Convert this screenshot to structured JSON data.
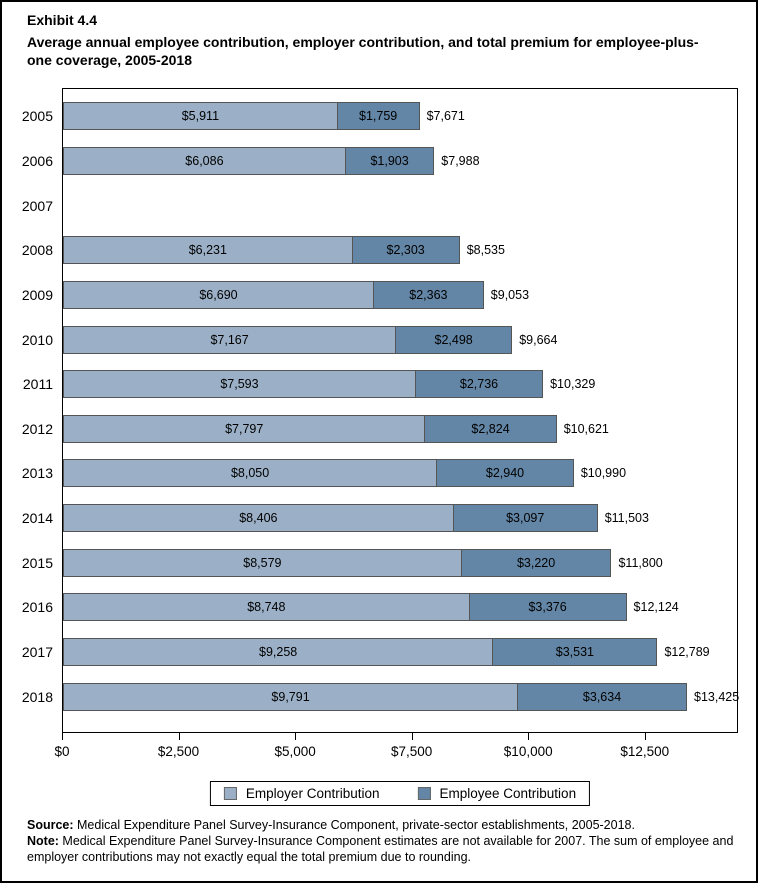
{
  "title": {
    "exhibit": "Exhibit 4.4",
    "text": "Average annual employee contribution, employer contribution, and total premium for employee-plus-one coverage, 2005-2018"
  },
  "chart_data": {
    "type": "bar",
    "orientation": "horizontal",
    "stacked": true,
    "grid": false,
    "legend_position": "bottom",
    "categories": [
      "2005",
      "2006",
      "2007",
      "2008",
      "2009",
      "2010",
      "2011",
      "2012",
      "2013",
      "2014",
      "2015",
      "2016",
      "2017",
      "2018"
    ],
    "series": [
      {
        "name": "Employer Contribution",
        "color": "#9BB0C6",
        "values": [
          5911,
          6086,
          null,
          6231,
          6690,
          7167,
          7593,
          7797,
          8050,
          8406,
          8579,
          8748,
          9258,
          9791
        ],
        "labels": [
          "$5,911",
          "$6,086",
          "",
          "$6,231",
          "$6,690",
          "$7,167",
          "$7,593",
          "$7,797",
          "$8,050",
          "$8,406",
          "$8,579",
          "$8,748",
          "$9,258",
          "$9,791"
        ]
      },
      {
        "name": "Employee Contribution",
        "color": "#6386A6",
        "values": [
          1759,
          1903,
          null,
          2303,
          2363,
          2498,
          2736,
          2824,
          2940,
          3097,
          3220,
          3376,
          3531,
          3634
        ],
        "labels": [
          "$1,759",
          "$1,903",
          "",
          "$2,303",
          "$2,363",
          "$2,498",
          "$2,736",
          "$2,824",
          "$2,940",
          "$3,097",
          "$3,220",
          "$3,376",
          "$3,531",
          "$3,634"
        ]
      }
    ],
    "totals": [
      7671,
      7988,
      null,
      8535,
      9053,
      9664,
      10329,
      10621,
      10990,
      11503,
      11800,
      12124,
      12789,
      13425
    ],
    "total_labels": [
      "$7,671",
      "$7,988",
      "",
      "$8,535",
      "$9,053",
      "$9,664",
      "$10,329",
      "$10,621",
      "$10,990",
      "$11,503",
      "$11,800",
      "$12,124",
      "$12,789",
      "$13,425"
    ],
    "missing_years": [
      "2007"
    ],
    "axis_max": 14500,
    "xlim": [
      0,
      14500
    ],
    "x_ticks": [
      {
        "value": 0,
        "label": "$0"
      },
      {
        "value": 2500,
        "label": "$2,500"
      },
      {
        "value": 5000,
        "label": "$5,000"
      },
      {
        "value": 7500,
        "label": "$7,500"
      },
      {
        "value": 10000,
        "label": "$10,000"
      },
      {
        "value": 12500,
        "label": "$12,500"
      }
    ],
    "legend": [
      {
        "label": "Employer Contribution",
        "color": "#9BB0C6"
      },
      {
        "label": "Employee Contribution",
        "color": "#6386A6"
      }
    ],
    "colors": {
      "employer": "#9BB0C6",
      "employee": "#6386A6",
      "bar_border": "#555555",
      "frame": "#000000"
    }
  },
  "footer": {
    "source_prefix": "Source:",
    "source_text": " Medical Expenditure Panel Survey-Insurance Component, private-sector establishments, 2005-2018.",
    "note_prefix": "Note:",
    "note_text": " Medical Expenditure Panel Survey-Insurance Component estimates are not available for 2007. The sum of employee and employer contributions may not exactly equal the total premium due to rounding."
  }
}
